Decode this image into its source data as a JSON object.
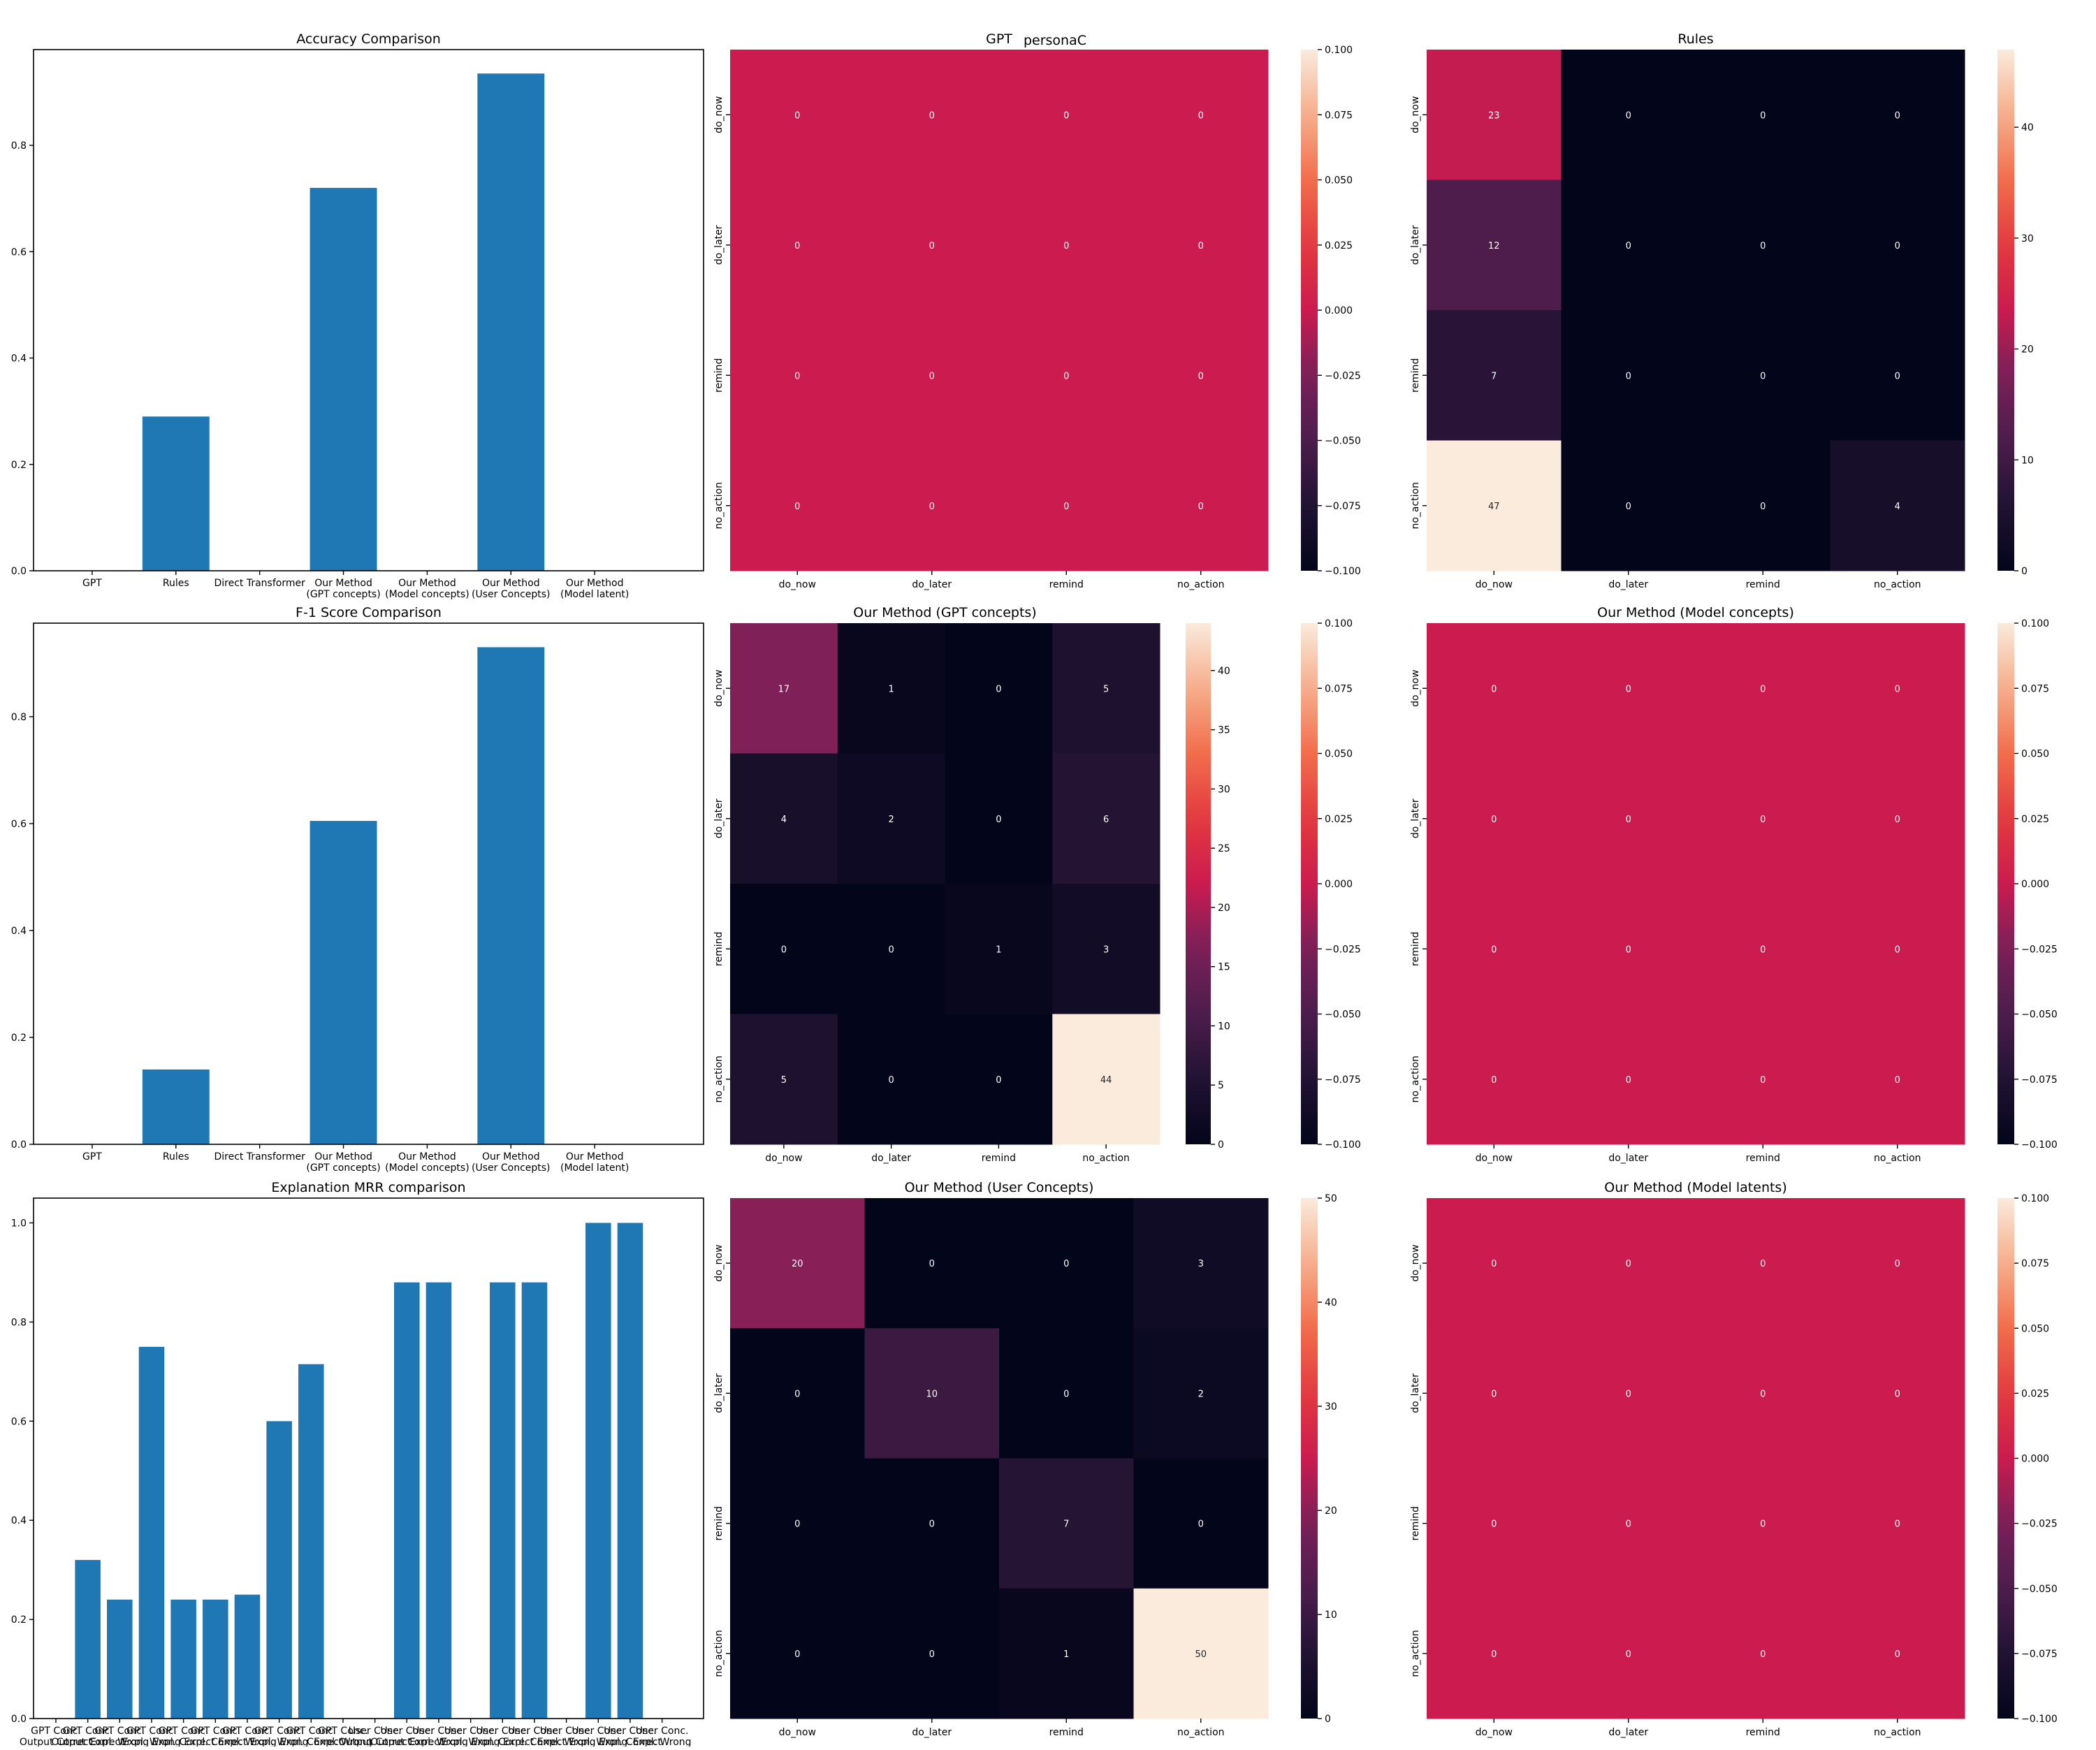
{
  "suptitle": "personaC",
  "labels": [
    "do_now",
    "do_later",
    "remind",
    "no_action"
  ],
  "chart_data": [
    {
      "id": "acc",
      "type": "bar",
      "title": "Accuracy Comparison",
      "categories": [
        "GPT",
        "Rules",
        "Direct Transformer",
        "Our Method\n(GPT concepts)",
        "Our Method\n(Model concepts)",
        "Our Method\n(User Concepts)",
        "Our Method\n(Model latent)"
      ],
      "values": [
        0,
        0.29,
        0,
        0.72,
        0,
        0.935,
        0
      ],
      "ylim": [
        0,
        0.98
      ],
      "yticks": [
        0.0,
        0.2,
        0.4,
        0.6,
        0.8
      ],
      "color": "#1f77b4"
    },
    {
      "id": "f1",
      "type": "bar",
      "title": "F-1 Score Comparison",
      "categories": [
        "GPT",
        "Rules",
        "Direct Transformer",
        "Our Method\n(GPT concepts)",
        "Our Method\n(Model concepts)",
        "Our Method\n(User Concepts)",
        "Our Method\n(Model latent)"
      ],
      "values": [
        0,
        0.14,
        0,
        0.605,
        0,
        0.93,
        0
      ],
      "ylim": [
        0,
        0.975
      ],
      "yticks": [
        0.0,
        0.2,
        0.4,
        0.6,
        0.8
      ],
      "color": "#1f77b4"
    },
    {
      "id": "mrr",
      "type": "bar",
      "title": "Explanation MRR comparison",
      "categories": [
        "GPT Conc.\nOutput Correct",
        "GPT Conc.\nOutput Correct",
        "GPT Conc.\nExpl. Wrong",
        "GPT Conc.\nExpl. Wrong",
        "GPT Conc.\nExpl. Correct",
        "GPT Conc.\nExpl. Correct",
        "GPT Conc.\nExpl. Wrong",
        "GPT Conc.\nExpl. Wrong",
        "GPT Conc.\nExpl. Correct",
        "GPT Conc.\nExpl. Wrong",
        "User Conc.\nOutput Correct",
        "User Conc.\nOutput Correct",
        "User Conc.\nExpl. Wrong",
        "User Conc.\nExpl. Wrong",
        "User Conc.\nExpl. Correct",
        "User Conc.\nExpl. Correct",
        "User Conc.\nExpl. Wrong",
        "User Conc.\nExpl. Wrong",
        "User Conc.\nExpl. Correct",
        "User Conc.\nExpl. Wrong"
      ],
      "values": [
        0,
        0.32,
        0.24,
        0.75,
        0.24,
        0.24,
        0.25,
        0.6,
        0.715,
        0,
        0,
        0.88,
        0.88,
        0,
        0.88,
        0.88,
        0,
        1.0,
        1.0,
        0
      ],
      "ylim": [
        0,
        1.05
      ],
      "yticks": [
        0.0,
        0.2,
        0.4,
        0.6,
        0.8,
        1.0
      ],
      "color": "#1f77b4"
    },
    {
      "id": "hm_gpt",
      "type": "heatmap",
      "title": "GPT",
      "matrix": [
        [
          0,
          0,
          0,
          0
        ],
        [
          0,
          0,
          0,
          0
        ],
        [
          0,
          0,
          0,
          0
        ],
        [
          0,
          0,
          0,
          0
        ]
      ],
      "vmin": -0.1,
      "vmax": 0.1,
      "cbar_ticks": [
        -0.1,
        -0.075,
        -0.05,
        -0.025,
        0.0,
        0.025,
        0.05,
        0.075,
        0.1
      ],
      "cbar_labels": [
        "−0.100",
        "−0.075",
        "−0.050",
        "−0.025",
        "0.000",
        "0.025",
        "0.050",
        "0.075",
        "0.100"
      ]
    },
    {
      "id": "hm_rules",
      "type": "heatmap",
      "title": "Rules",
      "matrix": [
        [
          23,
          0,
          0,
          0
        ],
        [
          12,
          0,
          0,
          0
        ],
        [
          7,
          0,
          0,
          0
        ],
        [
          47,
          0,
          0,
          4
        ]
      ],
      "vmin": 0,
      "vmax": 47,
      "cbar_ticks": [
        0,
        10,
        20,
        30,
        40
      ],
      "cbar_labels": [
        "0",
        "10",
        "20",
        "30",
        "40"
      ]
    },
    {
      "id": "hm_gptc",
      "type": "heatmap",
      "title": "Our Method (GPT concepts)",
      "matrix": [
        [
          17,
          1,
          0,
          5
        ],
        [
          4,
          2,
          0,
          6
        ],
        [
          0,
          0,
          1,
          3
        ],
        [
          5,
          0,
          0,
          44
        ]
      ],
      "vmin": 0,
      "vmax": 44,
      "cbar_ticks": [
        0,
        5,
        10,
        15,
        20,
        25,
        30,
        35,
        40
      ],
      "cbar_labels": [
        "0",
        "5",
        "10",
        "15",
        "20",
        "25",
        "30",
        "35",
        "40"
      ]
    },
    {
      "id": "hm_modelc",
      "type": "heatmap",
      "title": "Our Method (Model concepts)",
      "matrix": [
        [
          0,
          0,
          0,
          0
        ],
        [
          0,
          0,
          0,
          0
        ],
        [
          0,
          0,
          0,
          0
        ],
        [
          0,
          0,
          0,
          0
        ]
      ],
      "vmin": -0.1,
      "vmax": 0.1,
      "cbar_ticks": [
        -0.1,
        -0.075,
        -0.05,
        -0.025,
        0.0,
        0.025,
        0.05,
        0.075,
        0.1
      ],
      "cbar_labels": [
        "−0.100",
        "−0.075",
        "−0.050",
        "−0.025",
        "0.000",
        "0.025",
        "0.050",
        "0.075",
        "0.100"
      ]
    },
    {
      "id": "hm_userc",
      "type": "heatmap",
      "title": "Our Method (User Concepts)",
      "matrix": [
        [
          20,
          0,
          0,
          3
        ],
        [
          0,
          10,
          0,
          2
        ],
        [
          0,
          0,
          7,
          0
        ],
        [
          0,
          0,
          1,
          50
        ]
      ],
      "vmin": 0,
      "vmax": 50,
      "cbar_ticks": [
        0,
        10,
        20,
        30,
        40,
        50
      ],
      "cbar_labels": [
        "0",
        "10",
        "20",
        "30",
        "40",
        "50"
      ]
    },
    {
      "id": "hm_modell",
      "type": "heatmap",
      "title": "Our Method (Model latents)",
      "matrix": [
        [
          0,
          0,
          0,
          0
        ],
        [
          0,
          0,
          0,
          0
        ],
        [
          0,
          0,
          0,
          0
        ],
        [
          0,
          0,
          0,
          0
        ]
      ],
      "vmin": -0.1,
      "vmax": 0.1,
      "cbar_ticks": [
        -0.1,
        -0.075,
        -0.05,
        -0.025,
        0.0,
        0.025,
        0.05,
        0.075,
        0.1
      ],
      "cbar_labels": [
        "−0.100",
        "−0.075",
        "−0.050",
        "−0.025",
        "0.000",
        "0.025",
        "0.050",
        "0.075",
        "0.100"
      ]
    }
  ]
}
